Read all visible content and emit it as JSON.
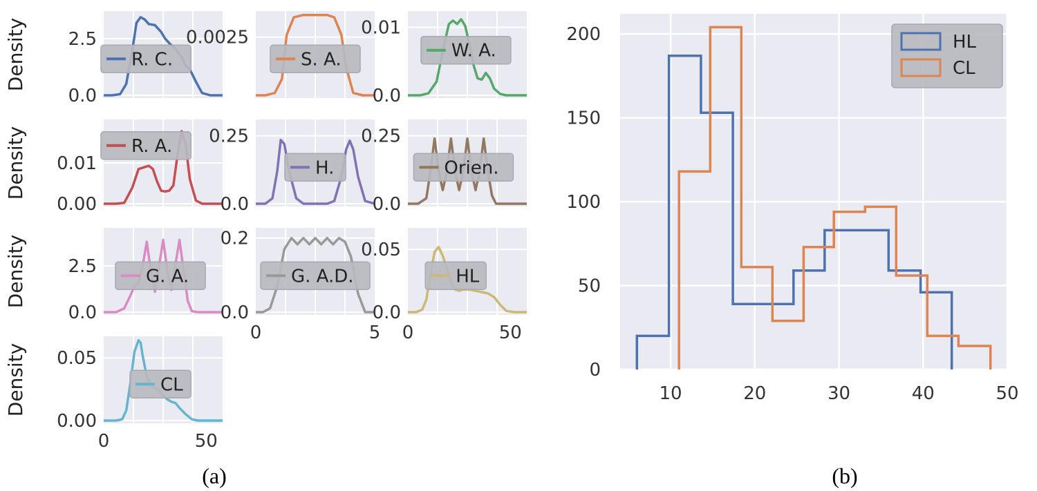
{
  "captions": {
    "a": "(a)",
    "b": "(b)"
  },
  "chart_data": [
    {
      "type": "line",
      "panel": "a",
      "layout": "4x3 grid of small density plots (KDE)",
      "ylabel": "Density",
      "subplots": [
        {
          "name": "R. C.",
          "color": "#4c72b0",
          "xlim": [
            0,
            58
          ],
          "ylim": [
            0,
            3.6
          ],
          "yticks": [
            {
              "v": 0.0,
              "t": "0.0"
            },
            {
              "v": 2.5,
              "t": "2.5"
            }
          ],
          "xticks": [],
          "x": [
            0,
            4,
            8,
            11,
            14,
            16,
            18,
            20,
            22,
            25,
            28,
            30,
            32,
            35,
            38,
            40,
            42,
            45,
            48,
            52,
            58
          ],
          "y": [
            0,
            0,
            0.05,
            0.5,
            2.0,
            3.2,
            3.45,
            3.35,
            3.15,
            3.1,
            2.8,
            2.5,
            2.3,
            2.05,
            1.7,
            1.3,
            1.15,
            0.6,
            0.1,
            0,
            0
          ],
          "legend": "center-left"
        },
        {
          "name": "S. A.",
          "color": "#dd8452",
          "xlim": [
            0,
            5
          ],
          "ylim": [
            0,
            0.0035
          ],
          "yticks": [
            {
              "v": 0.0025,
              "t": "0.0025"
            }
          ],
          "xticks": [],
          "x": [
            0,
            0.4,
            0.8,
            1.1,
            1.3,
            1.6,
            2.0,
            2.5,
            3.0,
            3.3,
            3.6,
            3.8,
            4.1,
            4.5,
            5.0
          ],
          "y": [
            0,
            0,
            0.0001,
            0.0007,
            0.0026,
            0.00335,
            0.00345,
            0.00345,
            0.00345,
            0.00335,
            0.0026,
            0.0012,
            0.0001,
            0,
            0
          ],
          "legend": "center"
        },
        {
          "name": "W. A.",
          "color": "#55a868",
          "xlim": [
            0,
            58
          ],
          "ylim": [
            0,
            0.012
          ],
          "yticks": [
            {
              "v": 0.0,
              "t": "0.0"
            },
            {
              "v": 0.01,
              "t": "0.01"
            }
          ],
          "xticks": [],
          "x": [
            0,
            6,
            10,
            14,
            17,
            20,
            22,
            24,
            26,
            28,
            30,
            32,
            34,
            36,
            38,
            40,
            42,
            45,
            48,
            52,
            58
          ],
          "y": [
            0,
            0,
            0.0003,
            0.002,
            0.0065,
            0.0105,
            0.011,
            0.0105,
            0.0112,
            0.0102,
            0.0075,
            0.0045,
            0.0025,
            0.0023,
            0.0033,
            0.0025,
            0.001,
            0.0002,
            0,
            0,
            0
          ],
          "legend": "upper-right"
        },
        {
          "name": "R. A.",
          "color": "#c44e52",
          "xlim": [
            0,
            58
          ],
          "ylim": [
            0,
            0.02
          ],
          "yticks": [
            {
              "v": 0.0,
              "t": "0.00"
            },
            {
              "v": 0.01,
              "t": "0.01"
            }
          ],
          "xticks": [],
          "x": [
            0,
            6,
            10,
            14,
            17,
            20,
            22,
            24,
            26,
            28,
            30,
            32,
            34,
            36,
            38,
            40,
            42,
            45,
            48,
            52,
            58
          ],
          "y": [
            0,
            0,
            0.0002,
            0.004,
            0.0085,
            0.009,
            0.0093,
            0.0085,
            0.0055,
            0.0032,
            0.003,
            0.0032,
            0.0045,
            0.012,
            0.0178,
            0.0145,
            0.006,
            0.0008,
            0,
            0,
            0
          ],
          "legend": "upper-left"
        },
        {
          "name": "H.",
          "color": "#8172b3",
          "xlim": [
            0,
            5
          ],
          "ylim": [
            0,
            0.3
          ],
          "yticks": [
            {
              "v": 0.0,
              "t": "0.0"
            },
            {
              "v": 0.25,
              "t": "0.25"
            }
          ],
          "xticks": [],
          "x": [
            0,
            0.4,
            0.7,
            0.9,
            1.05,
            1.2,
            1.4,
            1.7,
            2.0,
            2.5,
            3.0,
            3.3,
            3.6,
            3.8,
            3.95,
            4.1,
            4.3,
            4.6,
            5.0
          ],
          "y": [
            0,
            0,
            0.02,
            0.12,
            0.235,
            0.22,
            0.12,
            0.02,
            0,
            0,
            0,
            0.01,
            0.1,
            0.2,
            0.232,
            0.2,
            0.1,
            0.01,
            0
          ],
          "legend": "center"
        },
        {
          "name": "Orien.",
          "color": "#937860",
          "xlim": [
            0,
            58
          ],
          "ylim": [
            0,
            0.3
          ],
          "yticks": [
            {
              "v": 0.0,
              "t": "0.0"
            },
            {
              "v": 0.25,
              "t": "0.25"
            }
          ],
          "xticks": [],
          "x": [
            0,
            5,
            9,
            11,
            13,
            15,
            17,
            19,
            21,
            23,
            25,
            27,
            29,
            31,
            33,
            35,
            37,
            39,
            41,
            43,
            46,
            50,
            58
          ],
          "y": [
            0,
            0,
            0.02,
            0.12,
            0.24,
            0.12,
            0.05,
            0.12,
            0.24,
            0.12,
            0.05,
            0.12,
            0.24,
            0.12,
            0.05,
            0.12,
            0.24,
            0.12,
            0.03,
            0,
            0,
            0,
            0
          ],
          "legend": "center-right"
        },
        {
          "name": "G. A.",
          "color": "#da8bc3",
          "xlim": [
            0,
            58
          ],
          "ylim": [
            0,
            4.4
          ],
          "yticks": [
            {
              "v": 0.0,
              "t": "0.0"
            },
            {
              "v": 2.5,
              "t": "2.5"
            }
          ],
          "xticks": [],
          "x": [
            0,
            6,
            10,
            13,
            15,
            17,
            19,
            21,
            23,
            25,
            27,
            29,
            31,
            33,
            35,
            37,
            39,
            41,
            43,
            46,
            50,
            58
          ],
          "y": [
            0,
            0,
            0.2,
            0.9,
            1.4,
            1.6,
            2.5,
            3.8,
            2.2,
            1.1,
            2.5,
            3.9,
            2.3,
            1.2,
            2.6,
            3.9,
            2.2,
            0.6,
            0.05,
            0,
            0,
            0
          ],
          "legend": "center"
        },
        {
          "name": "G. A.D.",
          "color": "#999999",
          "xlim": [
            0,
            5
          ],
          "ylim": [
            0,
            0.22
          ],
          "yticks": [
            {
              "v": 0.0,
              "t": "0.0"
            },
            {
              "v": 0.2,
              "t": "0.2"
            }
          ],
          "xticks": [
            {
              "v": 0,
              "t": "0"
            },
            {
              "v": 5,
              "t": "5"
            }
          ],
          "x": [
            0,
            0.3,
            0.6,
            0.9,
            1.2,
            1.5,
            1.75,
            2.0,
            2.25,
            2.5,
            2.75,
            3.0,
            3.25,
            3.5,
            3.75,
            4.0,
            4.3,
            4.6,
            5.0
          ],
          "y": [
            0,
            0,
            0.01,
            0.07,
            0.17,
            0.2,
            0.183,
            0.2,
            0.183,
            0.2,
            0.183,
            0.2,
            0.183,
            0.2,
            0.19,
            0.15,
            0.05,
            0,
            0
          ],
          "legend": "center"
        },
        {
          "name": "HL",
          "color": "#ccb974",
          "xlim": [
            0,
            58
          ],
          "ylim": [
            0,
            0.065
          ],
          "yticks": [
            {
              "v": 0.0,
              "t": "0.0"
            },
            {
              "v": 0.05,
              "t": "0.05"
            }
          ],
          "xticks": [
            {
              "v": 0,
              "t": "0"
            },
            {
              "v": 50,
              "t": "50"
            }
          ],
          "x": [
            0,
            4,
            7,
            9,
            11,
            13,
            15,
            17,
            19,
            21,
            23,
            25,
            27,
            30,
            33,
            36,
            39,
            42,
            45,
            48,
            52,
            58
          ],
          "y": [
            0,
            0,
            0.002,
            0.01,
            0.03,
            0.048,
            0.052,
            0.045,
            0.035,
            0.024,
            0.018,
            0.017,
            0.018,
            0.018,
            0.017,
            0.016,
            0.015,
            0.012,
            0.006,
            0.001,
            0,
            0
          ],
          "legend": "center-right"
        },
        {
          "name": "CL",
          "color": "#64b5cd",
          "xlim": [
            0,
            58
          ],
          "ylim": [
            0,
            0.065
          ],
          "yticks": [
            {
              "v": 0.0,
              "t": "0.00"
            },
            {
              "v": 0.05,
              "t": "0.05"
            }
          ],
          "xticks": [
            {
              "v": 0,
              "t": "0"
            },
            {
              "v": 50,
              "t": "50"
            }
          ],
          "x": [
            0,
            6,
            9,
            11,
            13,
            15,
            17,
            18,
            19,
            21,
            23,
            25,
            27,
            29,
            31,
            33,
            35,
            37,
            40,
            43,
            46,
            52,
            58
          ],
          "y": [
            0,
            0,
            0.001,
            0.008,
            0.03,
            0.055,
            0.064,
            0.062,
            0.052,
            0.035,
            0.028,
            0.026,
            0.024,
            0.02,
            0.017,
            0.015,
            0.014,
            0.01,
            0.005,
            0.001,
            0,
            0,
            0
          ],
          "legend": "center"
        }
      ]
    },
    {
      "type": "histogram",
      "panel": "b",
      "xlim": [
        4,
        50
      ],
      "ylim": [
        0,
        212
      ],
      "xticks": [
        10,
        20,
        30,
        40,
        50
      ],
      "yticks": [
        0,
        50,
        100,
        150,
        200
      ],
      "legend_position": "top-right",
      "series": [
        {
          "name": "HL",
          "color": "#4c72b0",
          "edges": [
            6,
            9.8,
            13.6,
            17.4,
            21.2,
            24.6,
            28.3,
            32.1,
            35.9,
            39.7,
            43.4
          ],
          "counts": [
            20,
            187,
            153,
            39,
            39,
            59,
            83,
            83,
            59,
            46
          ]
        },
        {
          "name": "CL",
          "color": "#dd8452",
          "edges": [
            11,
            14.7,
            18.4,
            22.1,
            25.8,
            29.4,
            33.1,
            36.8,
            40.5,
            44.2,
            48
          ],
          "counts": [
            118,
            204,
            61,
            29,
            73,
            94,
            97,
            56,
            20,
            14
          ]
        }
      ]
    }
  ]
}
